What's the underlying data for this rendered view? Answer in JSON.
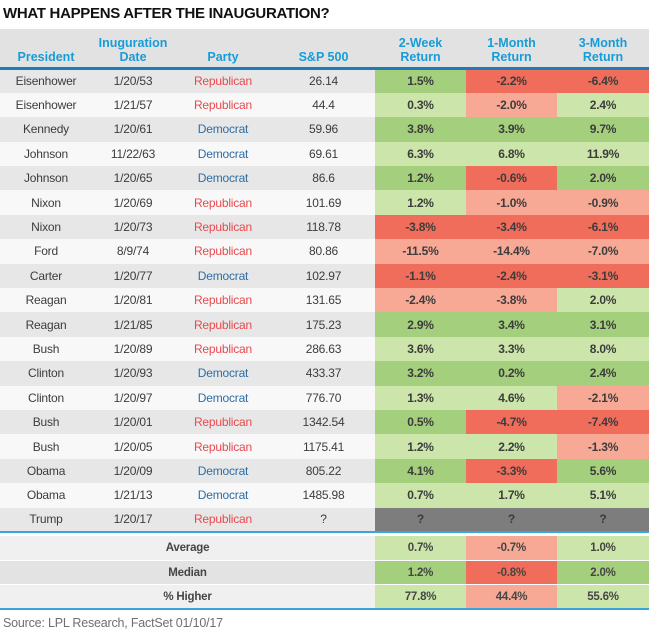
{
  "title": "WHAT HAPPENS AFTER THE INAUGURATION?",
  "source": "Source: LPL Research, FactSet   01/10/17",
  "colors": {
    "header_bg": "#e2e2e2",
    "header_text": "#189cd8",
    "header_underline": "#1c7cba",
    "section_line": "#38a6da",
    "row_stripe_dark": "#e7e7e7",
    "row_stripe_light": "#f8f8f8",
    "green_dark": "#a4cf7c",
    "green_light": "#cbe5aa",
    "red_dark": "#ef6d5a",
    "red_light": "#f7a995",
    "gray": "#7d7d7d",
    "gray_text": "#3a3a3a",
    "republican": "#e8494f",
    "democrat": "#2e6da4",
    "summary_label_dark": "#e3e3e3",
    "summary_label_light": "#f0f0f0"
  },
  "chart_data": {
    "type": "table",
    "title": "WHAT HAPPENS AFTER THE INAUGURATION?",
    "headers": [
      [
        "",
        "President"
      ],
      [
        "Inuguration",
        "Date"
      ],
      [
        "",
        "Party"
      ],
      [
        "",
        "S&P 500"
      ],
      [
        "2-Week",
        "Return"
      ],
      [
        "1-Month",
        "Return"
      ],
      [
        "3-Month",
        "Return"
      ]
    ],
    "rows": [
      {
        "president": "Eisenhower",
        "date": "1/20/53",
        "party": "Republican",
        "sp500": "26.14",
        "returns": [
          "1.5%",
          "-2.2%",
          "-6.4%"
        ],
        "cell_colors": [
          "green",
          "red",
          "red"
        ],
        "shade": "dark"
      },
      {
        "president": "Eisenhower",
        "date": "1/21/57",
        "party": "Republican",
        "sp500": "44.4",
        "returns": [
          "0.3%",
          "-2.0%",
          "2.4%"
        ],
        "cell_colors": [
          "green",
          "red",
          "green"
        ],
        "shade": "light"
      },
      {
        "president": "Kennedy",
        "date": "1/20/61",
        "party": "Democrat",
        "sp500": "59.96",
        "returns": [
          "3.8%",
          "3.9%",
          "9.7%"
        ],
        "cell_colors": [
          "green",
          "green",
          "green"
        ],
        "shade": "dark"
      },
      {
        "president": "Johnson",
        "date": "11/22/63",
        "party": "Democrat",
        "sp500": "69.61",
        "returns": [
          "6.3%",
          "6.8%",
          "11.9%"
        ],
        "cell_colors": [
          "green",
          "green",
          "green"
        ],
        "shade": "light"
      },
      {
        "president": "Johnson",
        "date": "1/20/65",
        "party": "Democrat",
        "sp500": "86.6",
        "returns": [
          "1.2%",
          "-0.6%",
          "2.0%"
        ],
        "cell_colors": [
          "green",
          "red",
          "green"
        ],
        "shade": "dark"
      },
      {
        "president": "Nixon",
        "date": "1/20/69",
        "party": "Republican",
        "sp500": "101.69",
        "returns": [
          "1.2%",
          "-1.0%",
          "-0.9%"
        ],
        "cell_colors": [
          "green",
          "red",
          "red"
        ],
        "shade": "light"
      },
      {
        "president": "Nixon",
        "date": "1/20/73",
        "party": "Republican",
        "sp500": "118.78",
        "returns": [
          "-3.8%",
          "-3.4%",
          "-6.1%"
        ],
        "cell_colors": [
          "red",
          "red",
          "red"
        ],
        "shade": "dark"
      },
      {
        "president": "Ford",
        "date": "8/9/74",
        "party": "Republican",
        "sp500": "80.86",
        "returns": [
          "-11.5%",
          "-14.4%",
          "-7.0%"
        ],
        "cell_colors": [
          "red",
          "red",
          "red"
        ],
        "shade": "light"
      },
      {
        "president": "Carter",
        "date": "1/20/77",
        "party": "Democrat",
        "sp500": "102.97",
        "returns": [
          "-1.1%",
          "-2.4%",
          "-3.1%"
        ],
        "cell_colors": [
          "red",
          "red",
          "red"
        ],
        "shade": "dark"
      },
      {
        "president": "Reagan",
        "date": "1/20/81",
        "party": "Republican",
        "sp500": "131.65",
        "returns": [
          "-2.4%",
          "-3.8%",
          "2.0%"
        ],
        "cell_colors": [
          "red",
          "red",
          "green"
        ],
        "shade": "light"
      },
      {
        "president": "Reagan",
        "date": "1/21/85",
        "party": "Republican",
        "sp500": "175.23",
        "returns": [
          "2.9%",
          "3.4%",
          "3.1%"
        ],
        "cell_colors": [
          "green",
          "green",
          "green"
        ],
        "shade": "dark"
      },
      {
        "president": "Bush",
        "date": "1/20/89",
        "party": "Republican",
        "sp500": "286.63",
        "returns": [
          "3.6%",
          "3.3%",
          "8.0%"
        ],
        "cell_colors": [
          "green",
          "green",
          "green"
        ],
        "shade": "light"
      },
      {
        "president": "Clinton",
        "date": "1/20/93",
        "party": "Democrat",
        "sp500": "433.37",
        "returns": [
          "3.2%",
          "0.2%",
          "2.4%"
        ],
        "cell_colors": [
          "green",
          "green",
          "green"
        ],
        "shade": "dark"
      },
      {
        "president": "Clinton",
        "date": "1/20/97",
        "party": "Democrat",
        "sp500": "776.70",
        "returns": [
          "1.3%",
          "4.6%",
          "-2.1%"
        ],
        "cell_colors": [
          "green",
          "green",
          "red"
        ],
        "shade": "light"
      },
      {
        "president": "Bush",
        "date": "1/20/01",
        "party": "Republican",
        "sp500": "1342.54",
        "returns": [
          "0.5%",
          "-4.7%",
          "-7.4%"
        ],
        "cell_colors": [
          "green",
          "red",
          "red"
        ],
        "shade": "dark"
      },
      {
        "president": "Bush",
        "date": "1/20/05",
        "party": "Republican",
        "sp500": "1175.41",
        "returns": [
          "1.2%",
          "2.2%",
          "-1.3%"
        ],
        "cell_colors": [
          "green",
          "green",
          "red"
        ],
        "shade": "light"
      },
      {
        "president": "Obama",
        "date": "1/20/09",
        "party": "Democrat",
        "sp500": "805.22",
        "returns": [
          "4.1%",
          "-3.3%",
          "5.6%"
        ],
        "cell_colors": [
          "green",
          "red",
          "green"
        ],
        "shade": "dark"
      },
      {
        "president": "Obama",
        "date": "1/21/13",
        "party": "Democrat",
        "sp500": "1485.98",
        "returns": [
          "0.7%",
          "1.7%",
          "5.1%"
        ],
        "cell_colors": [
          "green",
          "green",
          "green"
        ],
        "shade": "light"
      },
      {
        "president": "Trump",
        "date": "1/20/17",
        "party": "Republican",
        "sp500": "?",
        "returns": [
          "?",
          "?",
          "?"
        ],
        "cell_colors": [
          "gray",
          "gray",
          "gray"
        ],
        "shade": "dark"
      }
    ],
    "summary_rows": [
      {
        "label": "Average",
        "returns": [
          "0.7%",
          "-0.7%",
          "1.0%"
        ],
        "cell_colors": [
          "green",
          "red",
          "green"
        ],
        "shade": "light"
      },
      {
        "label": "Median",
        "returns": [
          "1.2%",
          "-0.8%",
          "2.0%"
        ],
        "cell_colors": [
          "green",
          "red",
          "green"
        ],
        "shade": "dark"
      },
      {
        "label": "% Higher",
        "returns": [
          "77.8%",
          "44.4%",
          "55.6%"
        ],
        "cell_colors": [
          "green",
          "red",
          "green"
        ],
        "shade": "light"
      }
    ]
  }
}
